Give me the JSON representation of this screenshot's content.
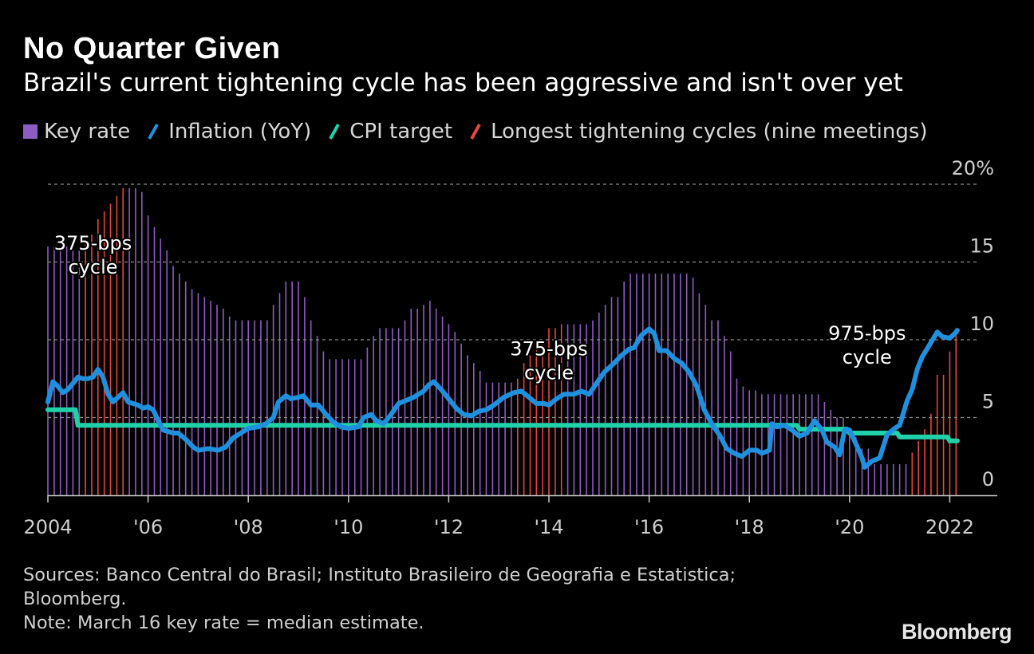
{
  "header": {
    "title": "No Quarter Given",
    "subtitle": "Brazil's current tightening cycle has been aggressive and isn't over yet"
  },
  "legend": [
    {
      "label": "Key rate",
      "kind": "box",
      "color": "#8c5cc3"
    },
    {
      "label": "Inflation (YoY)",
      "kind": "line",
      "color": "#1e90de"
    },
    {
      "label": "CPI target",
      "kind": "line",
      "color": "#20d0a8"
    },
    {
      "label": "Longest tightening cycles (nine meetings)",
      "kind": "line",
      "color": "#e8453a"
    }
  ],
  "colors": {
    "key_rate": "#8c5cc3",
    "inflation": "#1e90de",
    "cpi_target": "#20d0a8",
    "tightening": "#e8453a",
    "grid": "#8a8a8a",
    "axis": "#cccccc"
  },
  "chart_data": {
    "type": "bar+line",
    "x_range": [
      2004.0,
      2022.2
    ],
    "ylim": [
      0,
      20
    ],
    "y_ticks": [
      0,
      5,
      10,
      15,
      20
    ],
    "y_tick_labels": [
      "0",
      "5",
      "10",
      "15",
      "20%"
    ],
    "x_ticks": [
      2004,
      2006,
      2008,
      2010,
      2012,
      2014,
      2016,
      2018,
      2020,
      2022
    ],
    "x_tick_labels": [
      "2004",
      "'06",
      "'08",
      "'10",
      "'12",
      "'14",
      "'16",
      "'18",
      "'20",
      "2022"
    ],
    "bar_step_years": 0.125,
    "series": [
      {
        "name": "Key rate",
        "kind": "step",
        "points": [
          [
            2004.0,
            16.0
          ],
          [
            2004.7,
            16.25
          ],
          [
            2004.8,
            16.75
          ],
          [
            2004.9,
            17.25
          ],
          [
            2005.0,
            17.75
          ],
          [
            2005.1,
            18.25
          ],
          [
            2005.2,
            18.75
          ],
          [
            2005.3,
            19.25
          ],
          [
            2005.4,
            19.5
          ],
          [
            2005.5,
            19.75
          ],
          [
            2005.7,
            19.75
          ],
          [
            2005.8,
            19.5
          ],
          [
            2005.9,
            19.0
          ],
          [
            2006.0,
            18.0
          ],
          [
            2006.1,
            17.25
          ],
          [
            2006.2,
            16.5
          ],
          [
            2006.3,
            15.75
          ],
          [
            2006.4,
            15.25
          ],
          [
            2006.5,
            14.75
          ],
          [
            2006.6,
            14.25
          ],
          [
            2006.7,
            13.75
          ],
          [
            2006.8,
            13.25
          ],
          [
            2006.9,
            13.0
          ],
          [
            2007.1,
            12.75
          ],
          [
            2007.2,
            12.5
          ],
          [
            2007.3,
            12.25
          ],
          [
            2007.45,
            12.0
          ],
          [
            2007.6,
            11.5
          ],
          [
            2007.75,
            11.25
          ],
          [
            2008.3,
            11.25
          ],
          [
            2008.4,
            11.75
          ],
          [
            2008.5,
            12.25
          ],
          [
            2008.6,
            13.0
          ],
          [
            2008.75,
            13.75
          ],
          [
            2009.0,
            13.75
          ],
          [
            2009.05,
            12.75
          ],
          [
            2009.2,
            11.25
          ],
          [
            2009.3,
            10.25
          ],
          [
            2009.45,
            9.25
          ],
          [
            2009.55,
            8.75
          ],
          [
            2010.3,
            8.75
          ],
          [
            2010.35,
            9.5
          ],
          [
            2010.5,
            10.25
          ],
          [
            2010.6,
            10.75
          ],
          [
            2011.0,
            10.75
          ],
          [
            2011.1,
            11.25
          ],
          [
            2011.25,
            12.0
          ],
          [
            2011.4,
            12.25
          ],
          [
            2011.55,
            12.5
          ],
          [
            2011.65,
            12.0
          ],
          [
            2011.8,
            11.5
          ],
          [
            2011.95,
            11.0
          ],
          [
            2012.1,
            10.5
          ],
          [
            2012.2,
            9.75
          ],
          [
            2012.3,
            9.0
          ],
          [
            2012.45,
            8.5
          ],
          [
            2012.55,
            8.0
          ],
          [
            2012.65,
            7.5
          ],
          [
            2012.75,
            7.25
          ],
          [
            2013.3,
            7.25
          ],
          [
            2013.35,
            7.5
          ],
          [
            2013.4,
            8.0
          ],
          [
            2013.5,
            8.5
          ],
          [
            2013.6,
            9.0
          ],
          [
            2013.7,
            9.5
          ],
          [
            2013.8,
            10.0
          ],
          [
            2013.9,
            10.5
          ],
          [
            2014.0,
            10.75
          ],
          [
            2014.1,
            10.75
          ],
          [
            2014.25,
            11.0
          ],
          [
            2014.8,
            11.0
          ],
          [
            2014.85,
            11.25
          ],
          [
            2014.95,
            11.75
          ],
          [
            2015.1,
            12.25
          ],
          [
            2015.25,
            12.75
          ],
          [
            2015.4,
            13.25
          ],
          [
            2015.5,
            13.75
          ],
          [
            2015.6,
            14.25
          ],
          [
            2016.75,
            14.25
          ],
          [
            2016.8,
            14.0
          ],
          [
            2016.9,
            13.75
          ],
          [
            2017.0,
            13.0
          ],
          [
            2017.1,
            12.25
          ],
          [
            2017.25,
            11.25
          ],
          [
            2017.4,
            10.25
          ],
          [
            2017.55,
            9.25
          ],
          [
            2017.65,
            8.25
          ],
          [
            2017.75,
            7.5
          ],
          [
            2017.85,
            7.0
          ],
          [
            2018.0,
            6.75
          ],
          [
            2018.15,
            6.5
          ],
          [
            2019.4,
            6.5
          ],
          [
            2019.5,
            6.0
          ],
          [
            2019.6,
            5.5
          ],
          [
            2019.75,
            5.0
          ],
          [
            2019.9,
            4.5
          ],
          [
            2020.0,
            4.25
          ],
          [
            2020.1,
            3.75
          ],
          [
            2020.25,
            3.0
          ],
          [
            2020.4,
            2.25
          ],
          [
            2020.5,
            2.0
          ],
          [
            2021.15,
            2.0
          ],
          [
            2021.2,
            2.75
          ],
          [
            2021.35,
            3.5
          ],
          [
            2021.45,
            4.25
          ],
          [
            2021.55,
            5.25
          ],
          [
            2021.65,
            6.25
          ],
          [
            2021.75,
            7.75
          ],
          [
            2021.9,
            9.25
          ],
          [
            2022.1,
            10.75
          ],
          [
            2022.15,
            11.75
          ]
        ]
      },
      {
        "name": "Inflation (YoY)",
        "kind": "line",
        "points": [
          [
            2004.0,
            6.0
          ],
          [
            2004.1,
            7.3
          ],
          [
            2004.2,
            7.0
          ],
          [
            2004.3,
            6.6
          ],
          [
            2004.4,
            6.8
          ],
          [
            2004.5,
            7.2
          ],
          [
            2004.6,
            7.6
          ],
          [
            2004.7,
            7.5
          ],
          [
            2004.8,
            7.5
          ],
          [
            2004.9,
            7.6
          ],
          [
            2005.0,
            8.1
          ],
          [
            2005.1,
            7.6
          ],
          [
            2005.2,
            6.5
          ],
          [
            2005.3,
            6.0
          ],
          [
            2005.4,
            6.3
          ],
          [
            2005.5,
            6.6
          ],
          [
            2005.6,
            6.0
          ],
          [
            2005.8,
            5.8
          ],
          [
            2005.9,
            5.6
          ],
          [
            2006.0,
            5.7
          ],
          [
            2006.1,
            5.5
          ],
          [
            2006.2,
            4.8
          ],
          [
            2006.3,
            4.2
          ],
          [
            2006.5,
            4.0
          ],
          [
            2006.6,
            4.0
          ],
          [
            2006.75,
            3.6
          ],
          [
            2006.9,
            3.1
          ],
          [
            2007.0,
            2.9
          ],
          [
            2007.2,
            3.0
          ],
          [
            2007.4,
            2.9
          ],
          [
            2007.55,
            3.1
          ],
          [
            2007.7,
            3.7
          ],
          [
            2007.85,
            4.0
          ],
          [
            2008.0,
            4.3
          ],
          [
            2008.2,
            4.4
          ],
          [
            2008.35,
            4.6
          ],
          [
            2008.5,
            5.0
          ],
          [
            2008.6,
            6.0
          ],
          [
            2008.75,
            6.4
          ],
          [
            2008.85,
            6.2
          ],
          [
            2009.0,
            6.3
          ],
          [
            2009.1,
            6.4
          ],
          [
            2009.25,
            5.8
          ],
          [
            2009.4,
            5.8
          ],
          [
            2009.55,
            5.2
          ],
          [
            2009.7,
            4.7
          ],
          [
            2009.85,
            4.4
          ],
          [
            2010.0,
            4.3
          ],
          [
            2010.2,
            4.4
          ],
          [
            2010.3,
            5.0
          ],
          [
            2010.45,
            5.2
          ],
          [
            2010.55,
            4.8
          ],
          [
            2010.7,
            4.6
          ],
          [
            2010.85,
            5.2
          ],
          [
            2011.0,
            5.9
          ],
          [
            2011.15,
            6.1
          ],
          [
            2011.3,
            6.3
          ],
          [
            2011.5,
            6.7
          ],
          [
            2011.6,
            7.1
          ],
          [
            2011.7,
            7.3
          ],
          [
            2011.85,
            6.8
          ],
          [
            2012.0,
            6.2
          ],
          [
            2012.15,
            5.6
          ],
          [
            2012.3,
            5.2
          ],
          [
            2012.45,
            5.1
          ],
          [
            2012.6,
            5.4
          ],
          [
            2012.75,
            5.5
          ],
          [
            2012.9,
            5.8
          ],
          [
            2013.1,
            6.3
          ],
          [
            2013.3,
            6.6
          ],
          [
            2013.45,
            6.7
          ],
          [
            2013.6,
            6.3
          ],
          [
            2013.75,
            5.9
          ],
          [
            2013.9,
            5.9
          ],
          [
            2014.0,
            5.8
          ],
          [
            2014.15,
            6.2
          ],
          [
            2014.3,
            6.5
          ],
          [
            2014.5,
            6.5
          ],
          [
            2014.65,
            6.7
          ],
          [
            2014.8,
            6.5
          ],
          [
            2014.95,
            7.2
          ],
          [
            2015.1,
            7.9
          ],
          [
            2015.3,
            8.5
          ],
          [
            2015.45,
            9.0
          ],
          [
            2015.6,
            9.4
          ],
          [
            2015.7,
            9.5
          ],
          [
            2015.85,
            10.3
          ],
          [
            2016.0,
            10.7
          ],
          [
            2016.1,
            10.4
          ],
          [
            2016.2,
            9.3
          ],
          [
            2016.35,
            9.3
          ],
          [
            2016.5,
            8.8
          ],
          [
            2016.65,
            8.5
          ],
          [
            2016.8,
            7.9
          ],
          [
            2016.95,
            7.0
          ],
          [
            2017.1,
            5.5
          ],
          [
            2017.25,
            4.6
          ],
          [
            2017.4,
            3.9
          ],
          [
            2017.55,
            3.0
          ],
          [
            2017.7,
            2.7
          ],
          [
            2017.85,
            2.5
          ],
          [
            2018.0,
            2.9
          ],
          [
            2018.15,
            2.9
          ],
          [
            2018.25,
            2.7
          ],
          [
            2018.4,
            2.9
          ],
          [
            2018.45,
            4.6
          ],
          [
            2018.55,
            4.4
          ],
          [
            2018.7,
            4.5
          ],
          [
            2018.85,
            4.2
          ],
          [
            2019.0,
            3.8
          ],
          [
            2019.15,
            4.0
          ],
          [
            2019.3,
            4.8
          ],
          [
            2019.45,
            4.2
          ],
          [
            2019.55,
            3.4
          ],
          [
            2019.7,
            3.1
          ],
          [
            2019.8,
            2.6
          ],
          [
            2019.9,
            4.2
          ],
          [
            2020.0,
            4.2
          ],
          [
            2020.1,
            3.5
          ],
          [
            2020.25,
            2.4
          ],
          [
            2020.3,
            1.8
          ],
          [
            2020.45,
            2.2
          ],
          [
            2020.6,
            2.4
          ],
          [
            2020.75,
            3.9
          ],
          [
            2020.9,
            4.3
          ],
          [
            2021.0,
            4.5
          ],
          [
            2021.15,
            6.1
          ],
          [
            2021.25,
            6.8
          ],
          [
            2021.35,
            8.1
          ],
          [
            2021.45,
            8.9
          ],
          [
            2021.6,
            9.7
          ],
          [
            2021.75,
            10.5
          ],
          [
            2021.85,
            10.2
          ],
          [
            2022.0,
            10.1
          ],
          [
            2022.1,
            10.4
          ],
          [
            2022.15,
            10.6
          ]
        ]
      },
      {
        "name": "CPI target",
        "kind": "line",
        "points": [
          [
            2004.0,
            5.5
          ],
          [
            2004.55,
            5.5
          ],
          [
            2004.6,
            4.5
          ],
          [
            2018.95,
            4.5
          ],
          [
            2019.0,
            4.25
          ],
          [
            2019.95,
            4.25
          ],
          [
            2020.0,
            4.0
          ],
          [
            2020.95,
            4.0
          ],
          [
            2021.0,
            3.75
          ],
          [
            2021.95,
            3.75
          ],
          [
            2022.0,
            3.5
          ],
          [
            2022.15,
            3.5
          ]
        ]
      }
    ],
    "tightening_cycles": [
      {
        "label": "375-bps cycle",
        "start": 2004.7,
        "end": 2005.55
      },
      {
        "label": "375-bps cycle",
        "start": 2013.3,
        "end": 2014.3
      },
      {
        "label": "975-bps cycle",
        "start": 2021.15,
        "end": 2022.2
      }
    ],
    "annotations": [
      {
        "lines": [
          "375-bps",
          "cycle"
        ],
        "x": 2004.9,
        "y": 15.8
      },
      {
        "lines": [
          "375-bps",
          "cycle"
        ],
        "x": 2014.0,
        "y": 9.0
      },
      {
        "lines": [
          "975-bps",
          "cycle"
        ],
        "x": 2020.35,
        "y": 10.0
      }
    ]
  },
  "footer": {
    "sources": "Sources: Banco Central do Brasil; Instituto Brasileiro de Geografia e Estatistica;",
    "sources_cont": "Bloomberg.",
    "note": "Note: March 16 key rate = median estimate.",
    "brand": "Bloomberg"
  }
}
